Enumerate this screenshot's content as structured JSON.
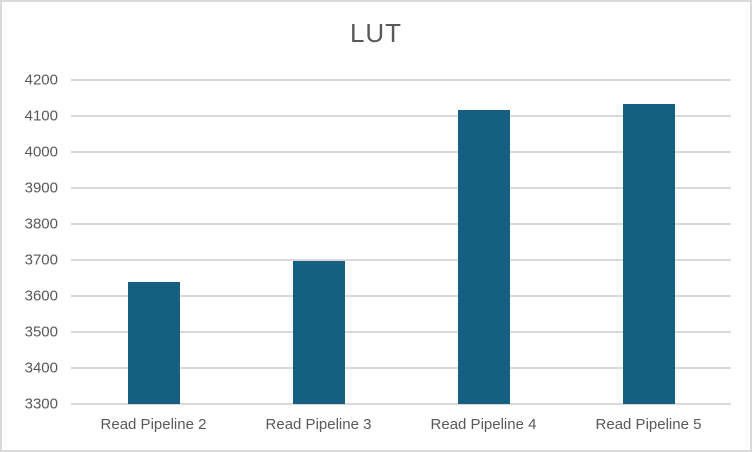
{
  "chart": {
    "title": "LUT",
    "colors": {
      "bar_fill": "#156082",
      "gridline": "#D9D9D9",
      "axis_text": "#595959",
      "title_text": "#595959",
      "border": "#D9D9D9",
      "background": "#FFFFFF"
    }
  },
  "chart_data": {
    "type": "bar",
    "title": "LUT",
    "categories": [
      "Read Pipeline 2",
      "Read Pipeline 3",
      "Read Pipeline 4",
      "Read Pipeline 5"
    ],
    "values": [
      3638,
      3696,
      4117,
      4133
    ],
    "xlabel": "",
    "ylabel": "",
    "ylim": [
      3300,
      4200
    ],
    "ytick_step": 100,
    "ytick_labels": [
      "3300",
      "3400",
      "3500",
      "3600",
      "3700",
      "3800",
      "3900",
      "4000",
      "4100",
      "4200"
    ],
    "grid": true,
    "legend_position": "none",
    "bar_color": "#156082"
  }
}
